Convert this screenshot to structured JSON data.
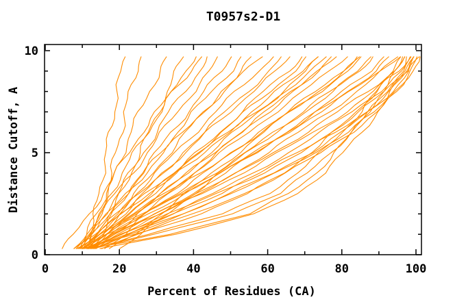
{
  "chart_data": {
    "type": "line",
    "title": "T0957s2-D1",
    "xlabel": "Percent of Residues (CA)",
    "ylabel": "Distance Cutoff, A",
    "xlim": [
      0,
      100
    ],
    "ylim": [
      0,
      10
    ],
    "x_ticks": {
      "labeled": [
        0,
        20,
        40,
        60,
        80,
        100
      ],
      "minor": [
        10,
        30,
        50,
        70,
        90
      ]
    },
    "y_ticks": {
      "labeled": [
        0,
        5,
        10
      ],
      "minor": [
        1,
        2,
        3,
        4,
        6,
        7,
        8,
        9
      ]
    },
    "grid": false,
    "legend": "none",
    "curve_color": "#ff8c00",
    "axis_color": "#000000",
    "background_color": "#ffffff",
    "n_models": 45,
    "y_levels": [
      0.3,
      1,
      2,
      3,
      4,
      5,
      6,
      7,
      8,
      9,
      9.7
    ],
    "curves_x": [
      [
        11,
        12,
        13.5,
        14.5,
        15.5,
        16.5,
        17.5,
        18.5,
        19.5,
        20.5,
        21.5
      ],
      [
        12,
        13,
        15,
        16.5,
        18,
        19,
        20.5,
        21.5,
        23,
        24.5,
        25.5
      ],
      [
        10,
        12,
        14.5,
        17,
        19,
        21,
        23,
        25.5,
        28,
        31,
        33
      ],
      [
        13,
        15,
        18,
        20.5,
        23,
        25.5,
        28,
        30.5,
        33,
        35.5,
        37
      ],
      [
        9,
        11,
        14,
        17.5,
        21,
        24,
        27.5,
        31,
        34.5,
        38,
        40
      ],
      [
        10,
        12.5,
        16,
        19.5,
        23,
        26.5,
        30,
        33.5,
        37.5,
        41.5,
        44
      ],
      [
        8,
        11,
        15,
        19,
        23.5,
        27.5,
        31.5,
        35.5,
        40,
        44.5,
        47
      ],
      [
        11,
        14,
        18,
        22,
        26,
        30,
        34,
        38.5,
        43,
        47.5,
        50
      ],
      [
        9.5,
        13,
        17.5,
        22,
        26.5,
        31,
        35.5,
        40,
        45,
        50,
        53
      ],
      [
        12,
        15.5,
        20,
        24.5,
        29,
        33.5,
        38,
        43,
        48,
        53,
        56
      ],
      [
        8,
        12,
        17,
        22,
        27,
        32,
        37,
        42.5,
        48,
        54,
        58
      ],
      [
        10,
        14,
        19,
        24.5,
        30,
        35,
        40.5,
        46,
        51.5,
        57.5,
        61
      ],
      [
        11,
        15.5,
        21,
        26.5,
        32,
        37.5,
        43,
        48.5,
        54.5,
        60.5,
        64
      ],
      [
        9,
        13.5,
        19.5,
        25.5,
        31.5,
        37.5,
        43.5,
        49.5,
        56,
        62.5,
        66
      ],
      [
        12,
        17,
        23,
        29,
        35,
        41,
        47,
        53,
        59,
        65.5,
        69
      ],
      [
        10.5,
        15.5,
        22,
        28.5,
        35,
        41,
        47.5,
        54,
        60.5,
        67,
        71
      ],
      [
        13,
        18.5,
        25,
        31.5,
        38,
        44.5,
        51,
        57.5,
        64,
        70.5,
        74
      ],
      [
        9.5,
        14.5,
        21,
        28,
        35,
        42,
        49,
        55.5,
        62.5,
        69.5,
        73
      ],
      [
        11.5,
        17,
        24,
        31,
        38.5,
        45.5,
        52.5,
        59.5,
        66.5,
        73.5,
        77
      ],
      [
        8.5,
        13,
        20,
        27.5,
        35,
        42.5,
        50,
        57,
        64.5,
        72,
        76
      ],
      [
        10,
        16,
        24,
        32,
        40,
        47.5,
        55,
        62,
        69.5,
        77,
        81
      ],
      [
        12,
        18,
        26.5,
        35,
        43,
        50.5,
        58,
        65.5,
        73,
        80,
        84
      ],
      [
        9,
        15,
        24,
        33,
        42,
        50,
        58,
        66,
        74,
        81.5,
        86
      ],
      [
        11,
        17.5,
        27,
        36.5,
        45.5,
        54,
        62,
        70,
        77.5,
        84.5,
        88
      ],
      [
        13,
        20,
        30,
        39.5,
        48.5,
        57,
        65,
        73,
        80.5,
        87.5,
        91
      ],
      [
        10.5,
        17,
        27.5,
        38,
        47.5,
        56.5,
        65,
        73.5,
        81.5,
        89,
        93
      ],
      [
        12.5,
        20,
        31,
        41.5,
        51,
        60,
        68.5,
        76.5,
        84,
        91,
        95
      ],
      [
        9.5,
        16,
        26.5,
        37,
        47,
        56.5,
        65.5,
        74,
        82.5,
        90.5,
        95
      ],
      [
        11.5,
        19,
        30.5,
        41.5,
        52,
        61.5,
        70.5,
        79,
        87,
        94,
        97
      ],
      [
        14,
        22,
        34,
        45.5,
        56,
        65.5,
        74.5,
        82.5,
        90,
        96.5,
        99
      ],
      [
        10,
        18,
        30,
        42,
        53,
        63,
        72.5,
        81,
        88.5,
        95.5,
        98.5
      ],
      [
        12,
        21,
        34.5,
        47,
        58,
        68,
        77,
        85,
        91.5,
        97,
        99.5
      ],
      [
        13.5,
        23,
        37,
        50,
        61.5,
        71.5,
        80,
        87.5,
        93.5,
        98,
        100
      ],
      [
        11,
        20,
        33.5,
        46.5,
        58.5,
        69,
        78.5,
        86.5,
        93,
        98,
        100.5
      ],
      [
        15,
        25,
        40,
        53.5,
        65,
        74.5,
        82.5,
        89.5,
        95,
        99,
        101
      ],
      [
        12.5,
        22,
        36.5,
        50.5,
        62.5,
        72.5,
        81.5,
        89,
        94.5,
        98.5,
        100.5
      ],
      [
        12,
        33,
        55,
        66,
        73,
        78,
        83,
        87,
        91,
        95,
        97
      ],
      [
        11,
        28,
        48,
        60,
        68,
        74.5,
        80,
        85,
        89.5,
        94,
        96
      ],
      [
        13,
        30,
        50,
        63,
        71,
        77,
        82.5,
        87.5,
        92,
        96,
        98
      ],
      [
        10,
        24,
        42,
        55,
        64,
        71.5,
        78,
        84,
        89,
        94,
        96.5
      ],
      [
        14,
        35,
        57,
        68,
        75,
        80.5,
        85.5,
        89.5,
        93.5,
        97,
        99
      ],
      [
        4.5,
        8,
        12,
        15.5,
        19,
        22.5,
        26,
        30,
        34.5,
        39,
        42
      ],
      [
        18,
        24,
        31,
        38,
        45,
        52,
        59,
        66,
        73.5,
        81,
        85
      ],
      [
        16,
        21,
        27,
        33.5,
        40,
        46.5,
        53,
        60,
        67,
        74,
        78
      ],
      [
        20,
        26,
        33,
        40,
        47,
        54.5,
        62,
        69.5,
        77,
        84.5,
        88
      ]
    ]
  }
}
